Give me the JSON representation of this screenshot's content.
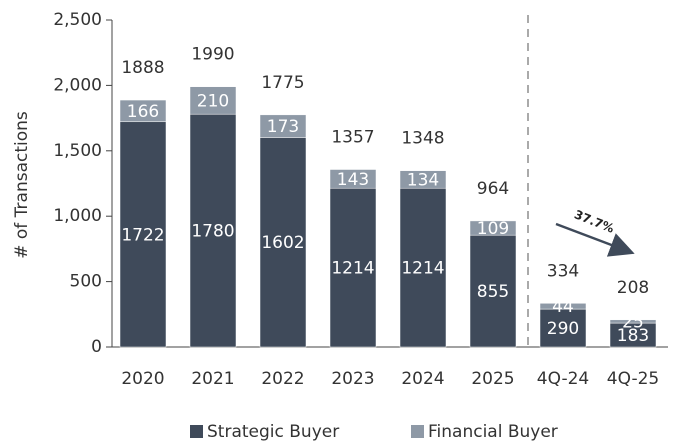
{
  "chart_data": {
    "type": "stacked_bar",
    "y_label": "# of Transactions",
    "categories": [
      "2020",
      "2021",
      "2022",
      "2023",
      "2024",
      "2025",
      "4Q-24",
      "4Q-25"
    ],
    "series": [
      {
        "name": "Strategic Buyer",
        "color": "#3f4a5a",
        "values": [
          1722,
          1780,
          1602,
          1214,
          1214,
          855,
          290,
          183
        ]
      },
      {
        "name": "Financial Buyer",
        "color": "#8e99a6",
        "values": [
          166,
          210,
          173,
          143,
          134,
          109,
          44,
          25
        ]
      }
    ],
    "totals": [
      1888,
      1990,
      1775,
      1357,
      1348,
      964,
      334,
      208
    ],
    "annotation": "37.7%",
    "ylim": [
      0,
      2500
    ],
    "yticks": [
      0,
      500,
      {
        "value": 1000,
        "label": "1,000"
      },
      {
        "value": 1500,
        "label": "1,500"
      },
      {
        "value": 2000,
        "label": "2,000"
      },
      {
        "value": 2500,
        "label": "2,500"
      }
    ],
    "legend": "bottom"
  }
}
